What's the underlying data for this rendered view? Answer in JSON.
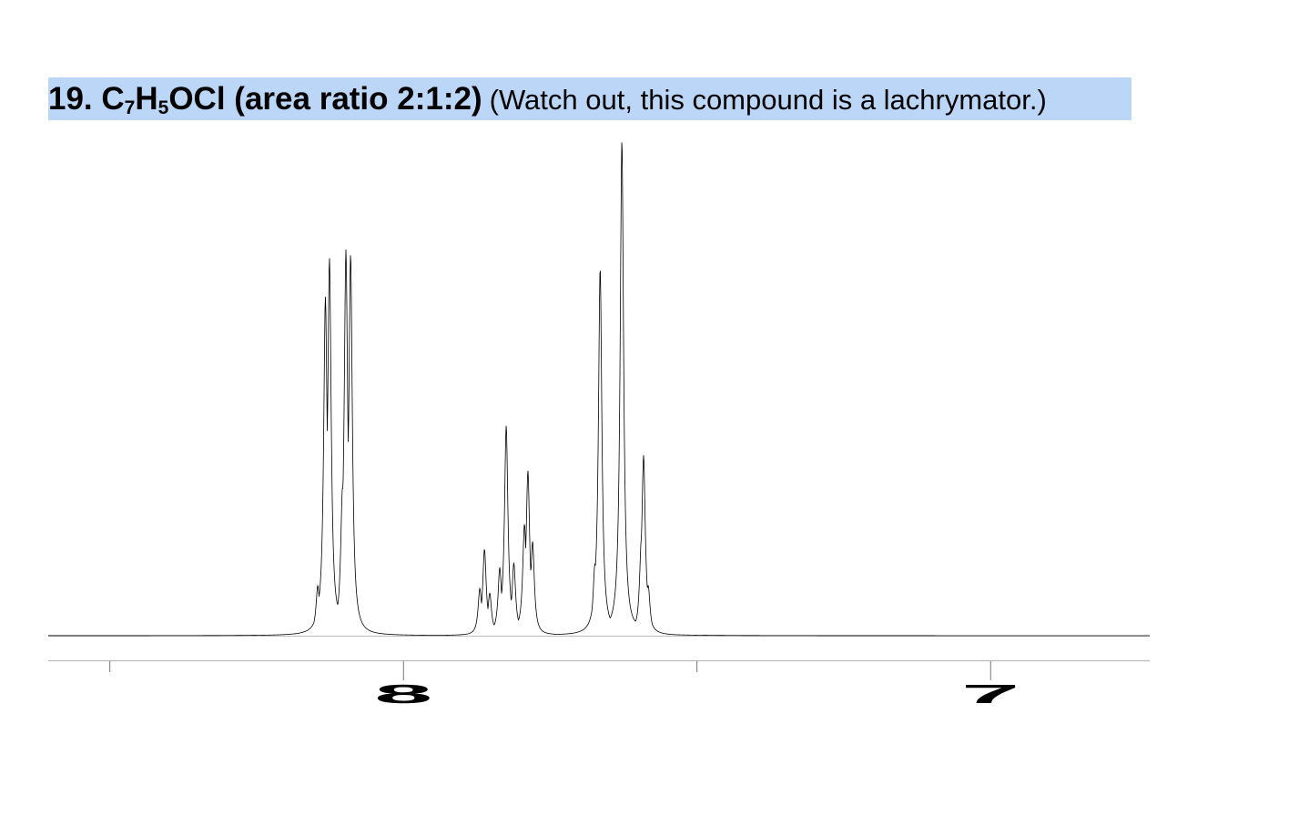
{
  "title": {
    "number": "19.",
    "formula_parts": [
      "C",
      "7",
      "H",
      "5",
      "OCl"
    ],
    "ratio": "(area ratio 2:1:2)",
    "note": "(Watch out, this compound is a lachrymator.)"
  },
  "chart_data": {
    "type": "line",
    "title": "19. C7H5OCl (area ratio 2:1:2) (Watch out, this compound is a lachrymator.)",
    "xlabel": "",
    "ylabel": "",
    "x_axis_reversed": true,
    "xlim": [
      8.605,
      6.729
    ],
    "tick_labels": [
      {
        "value": 8,
        "label": "8"
      },
      {
        "value": 7,
        "label": "7"
      }
    ],
    "minor_ticks": [
      8.5,
      7.5
    ],
    "grid": false,
    "line_color": "#000000",
    "y_units": "relative intensity (tallest = 100)",
    "peaks": [
      {
        "ppm": 8.146,
        "intensity": 9
      },
      {
        "ppm": 8.133,
        "intensity": 66
      },
      {
        "ppm": 8.126,
        "intensity": 74
      },
      {
        "ppm": 8.104,
        "intensity": 26
      },
      {
        "ppm": 8.098,
        "intensity": 75
      },
      {
        "ppm": 8.09,
        "intensity": 75
      },
      {
        "ppm": 7.87,
        "intensity": 9
      },
      {
        "ppm": 7.862,
        "intensity": 17
      },
      {
        "ppm": 7.853,
        "intensity": 8
      },
      {
        "ppm": 7.836,
        "intensity": 13
      },
      {
        "ppm": 7.825,
        "intensity": 42
      },
      {
        "ppm": 7.812,
        "intensity": 14
      },
      {
        "ppm": 7.794,
        "intensity": 21
      },
      {
        "ppm": 7.788,
        "intensity": 32
      },
      {
        "ppm": 7.78,
        "intensity": 18
      },
      {
        "ppm": 7.674,
        "intensity": 13
      },
      {
        "ppm": 7.665,
        "intensity": 74
      },
      {
        "ppm": 7.628,
        "intensity": 100
      },
      {
        "ppm": 7.595,
        "intensity": 17
      },
      {
        "ppm": 7.591,
        "intensity": 35
      },
      {
        "ppm": 7.583,
        "intensity": 9
      }
    ]
  }
}
